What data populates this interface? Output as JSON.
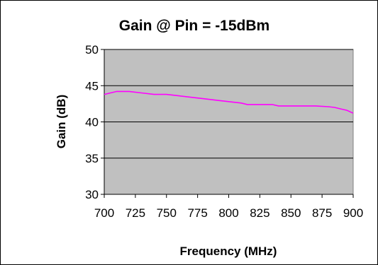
{
  "chart_data": {
    "type": "line",
    "title": "Gain @ Pin = -15dBm",
    "xlabel": "Frequency (MHz)",
    "ylabel": "Gain (dB)",
    "xlim": [
      700,
      900
    ],
    "ylim": [
      30,
      50
    ],
    "x_ticks": [
      "700",
      "725",
      "750",
      "775",
      "800",
      "825",
      "850",
      "875",
      "900"
    ],
    "y_ticks": [
      "30",
      "35",
      "40",
      "45",
      "50"
    ],
    "grid": true,
    "plot_background": "#c0c0c0",
    "series": [
      {
        "name": "",
        "color": "#ff00ff",
        "x": [
          700,
          705,
          710,
          720,
          730,
          740,
          750,
          760,
          770,
          780,
          790,
          800,
          805,
          810,
          815,
          820,
          830,
          835,
          840,
          850,
          860,
          870,
          880,
          885,
          890,
          895,
          900
        ],
        "y": [
          43.8,
          44.0,
          44.2,
          44.2,
          44.0,
          43.8,
          43.8,
          43.6,
          43.4,
          43.2,
          43.0,
          42.8,
          42.7,
          42.6,
          42.4,
          42.4,
          42.4,
          42.4,
          42.2,
          42.2,
          42.2,
          42.2,
          42.1,
          42.0,
          41.8,
          41.6,
          41.2
        ]
      }
    ]
  }
}
